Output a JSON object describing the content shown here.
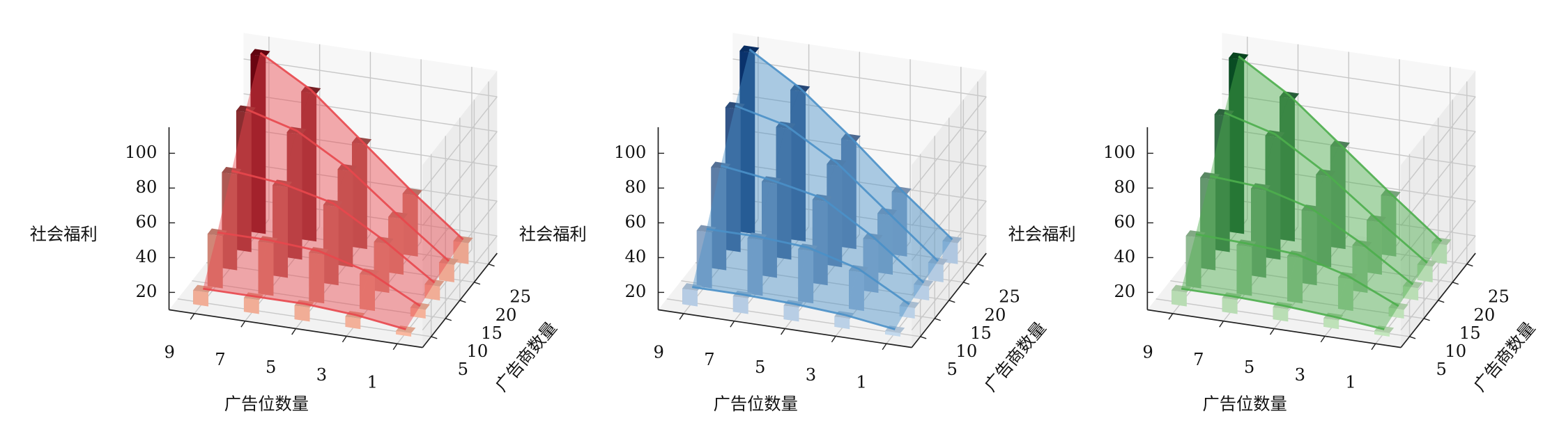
{
  "chart_data": [
    {
      "type": "bar3d",
      "x_label": "广告位数量",
      "y_label": "广告商数量",
      "z_label": "社会福利",
      "x": [
        1,
        3,
        5,
        7,
        9
      ],
      "y": [
        5,
        10,
        15,
        20,
        25
      ],
      "values": [
        [
          12,
          16,
          18,
          18,
          18
        ],
        [
          15,
          30,
          38,
          40,
          40
        ],
        [
          18,
          38,
          55,
          62,
          65
        ],
        [
          20,
          42,
          65,
          82,
          90
        ],
        [
          22,
          45,
          70,
          95,
          112
        ]
      ],
      "xlim": [
        0,
        10
      ],
      "ylim": [
        2,
        28
      ],
      "zlim": [
        10,
        115
      ],
      "xticks": [
        1,
        3,
        5,
        7,
        9
      ],
      "yticks": [
        5,
        10,
        15,
        20,
        25
      ],
      "zticks": [
        20,
        40,
        60,
        80,
        100
      ],
      "colors": [
        "#fcbba1",
        "#67000d"
      ],
      "surface_color": "#e8474d",
      "grid": true
    },
    {
      "type": "bar3d",
      "x_label": "广告位数量",
      "y_label": "广告商数量",
      "z_label": "社会福利",
      "x": [
        1,
        3,
        5,
        7,
        9
      ],
      "y": [
        5,
        10,
        15,
        20,
        25
      ],
      "values": [
        [
          12,
          16,
          18,
          19,
          19
        ],
        [
          16,
          32,
          40,
          42,
          42
        ],
        [
          18,
          40,
          58,
          64,
          68
        ],
        [
          20,
          44,
          68,
          85,
          92
        ],
        [
          22,
          46,
          72,
          96,
          114
        ]
      ],
      "xlim": [
        0,
        10
      ],
      "ylim": [
        2,
        28
      ],
      "zlim": [
        10,
        115
      ],
      "xticks": [
        1,
        3,
        5,
        7,
        9
      ],
      "yticks": [
        5,
        10,
        15,
        20,
        25
      ],
      "zticks": [
        20,
        40,
        60,
        80,
        100
      ],
      "colors": [
        "#c6dbef",
        "#08306b"
      ],
      "surface_color": "#4a90c8",
      "grid": true
    },
    {
      "type": "bar3d",
      "x_label": "广告位数量",
      "y_label": "广告商数量",
      "z_label": "社会福利",
      "x": [
        1,
        3,
        5,
        7,
        9
      ],
      "y": [
        5,
        10,
        15,
        20,
        25
      ],
      "values": [
        [
          12,
          15,
          17,
          18,
          18
        ],
        [
          15,
          28,
          36,
          38,
          39
        ],
        [
          17,
          36,
          52,
          60,
          62
        ],
        [
          19,
          40,
          62,
          80,
          88
        ],
        [
          21,
          44,
          68,
          92,
          110
        ]
      ],
      "xlim": [
        0,
        10
      ],
      "ylim": [
        2,
        28
      ],
      "zlim": [
        10,
        115
      ],
      "xticks": [
        1,
        3,
        5,
        7,
        9
      ],
      "yticks": [
        5,
        10,
        15,
        20,
        25
      ],
      "zticks": [
        20,
        40,
        60,
        80,
        100
      ],
      "colors": [
        "#c7e9c0",
        "#00441b"
      ],
      "surface_color": "#4cae4c",
      "grid": true
    }
  ]
}
